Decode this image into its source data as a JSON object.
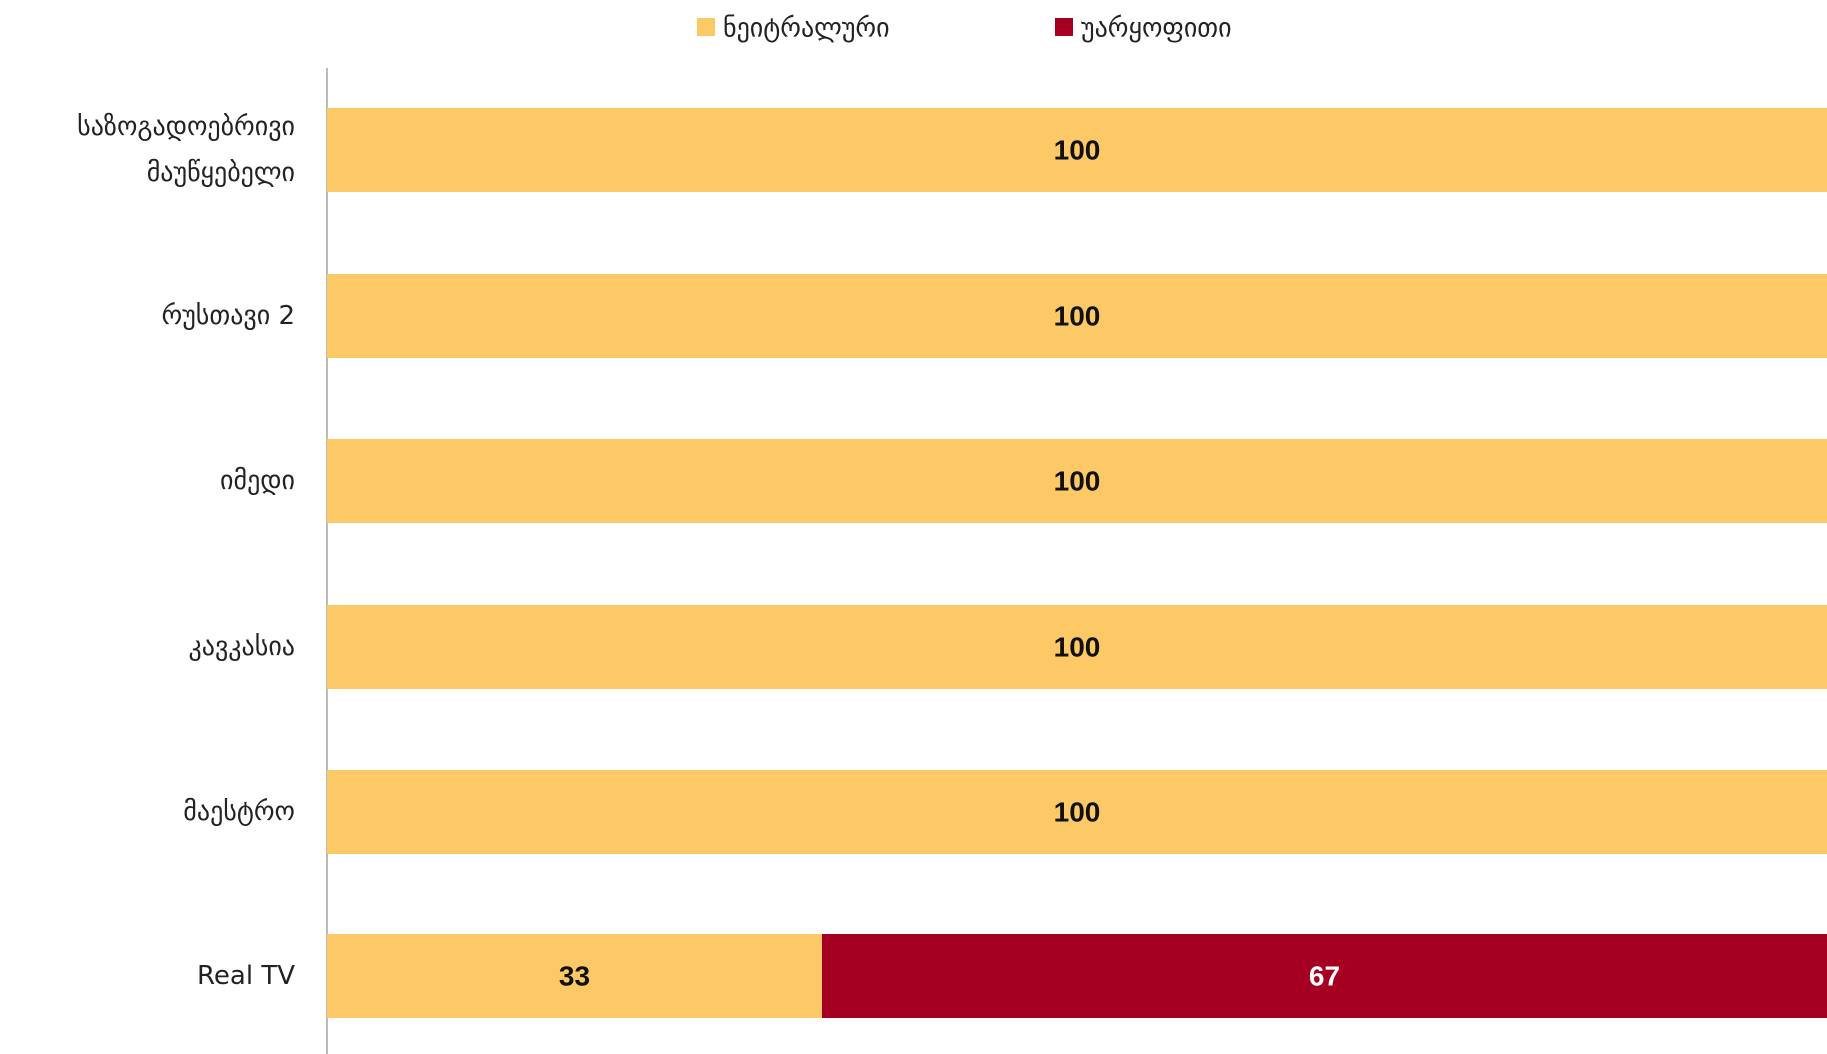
{
  "chart_data": {
    "type": "stacked_bar_horizontal",
    "categories": [
      "საზოგადოებრივი მაუწყებელი",
      "რუსთავი 2",
      "იმედი",
      "კავკასია",
      "მაესტრო",
      "Real TV"
    ],
    "series": [
      {
        "name": "ნეიტრალური",
        "color": "#FDC966",
        "values": [
          100,
          100,
          100,
          100,
          100,
          33
        ]
      },
      {
        "name": "უარყოფითი",
        "color": "#A50021",
        "values": [
          0,
          0,
          0,
          0,
          0,
          67
        ]
      }
    ],
    "xlim": [
      0,
      100
    ],
    "legend": "top"
  }
}
